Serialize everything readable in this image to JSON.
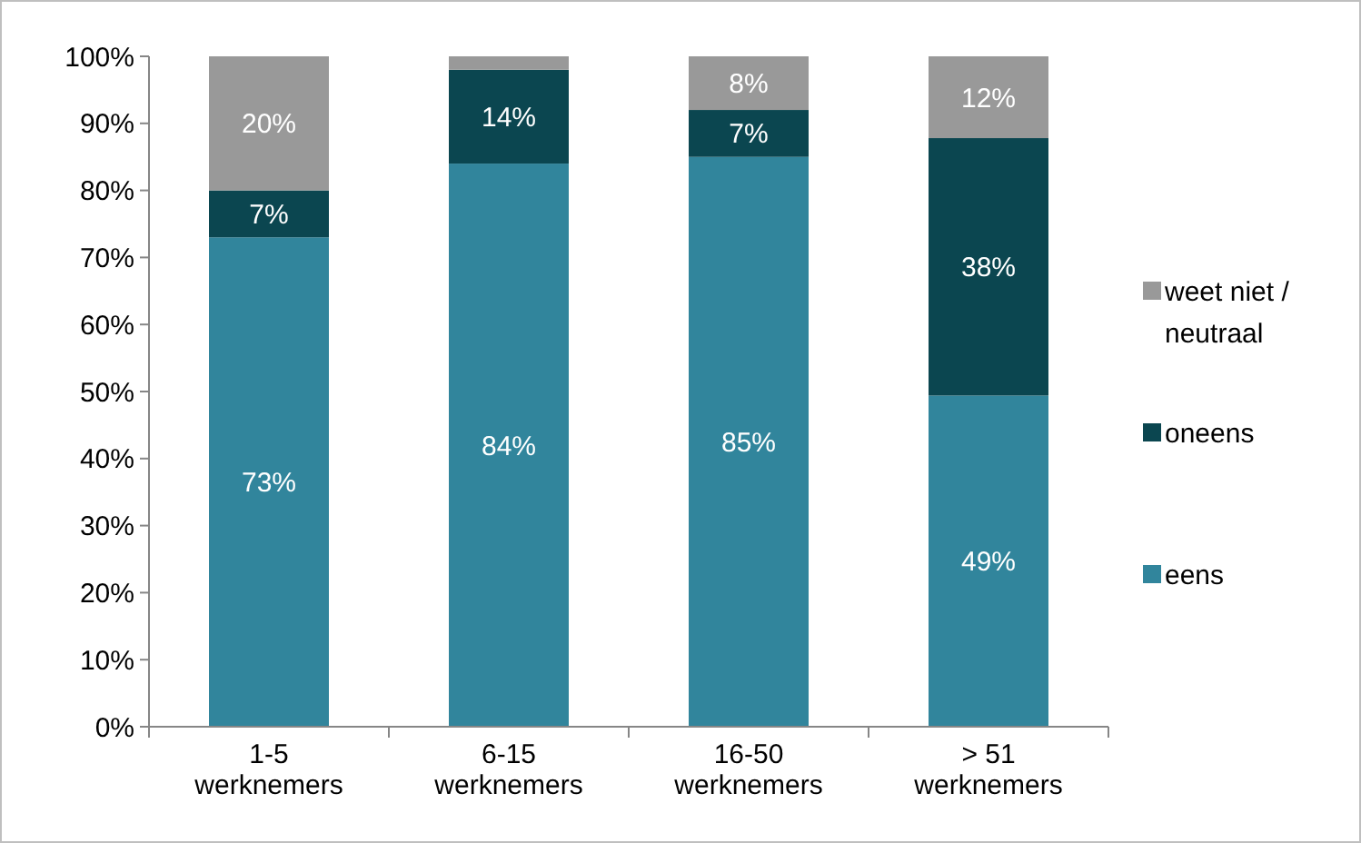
{
  "chart_data": {
    "type": "bar",
    "stacked": true,
    "categories": [
      "1-5 werknemers",
      "6-15 werknemers",
      "16-50 werknemers",
      "> 51 werknemers"
    ],
    "series": [
      {
        "name": "eens",
        "color": "#31859c",
        "values": [
          73,
          84,
          85,
          49.4
        ],
        "value_labels": [
          "73%",
          "84%",
          "85%",
          "49%"
        ]
      },
      {
        "name": "oneens",
        "color": "#0b4650",
        "values": [
          7,
          14,
          7,
          38.4
        ],
        "value_labels": [
          "7%",
          "14%",
          "7%",
          "38%"
        ]
      },
      {
        "name": "weet niet / neutraal",
        "color": "#999999",
        "values": [
          20,
          2,
          8,
          12.2
        ],
        "value_labels": [
          "20%",
          null,
          "8%",
          "12%"
        ]
      }
    ],
    "ylim": [
      0,
      100
    ],
    "yticks": [
      {
        "value": 0,
        "label": "0%"
      },
      {
        "value": 10,
        "label": "10%"
      },
      {
        "value": 20,
        "label": "20%"
      },
      {
        "value": 30,
        "label": "30%"
      },
      {
        "value": 40,
        "label": "40%"
      },
      {
        "value": 50,
        "label": "50%"
      },
      {
        "value": 60,
        "label": "60%"
      },
      {
        "value": 70,
        "label": "70%"
      },
      {
        "value": 80,
        "label": "80%"
      },
      {
        "value": 90,
        "label": "90%"
      },
      {
        "value": 100,
        "label": "100%"
      }
    ],
    "grid": false,
    "legend": "right"
  }
}
